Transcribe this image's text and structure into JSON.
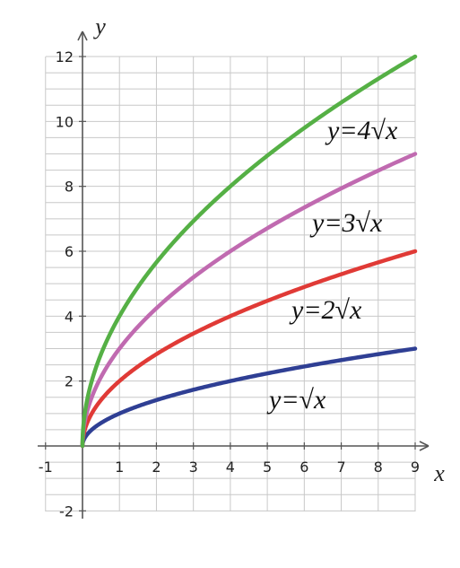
{
  "chart_data": {
    "type": "line",
    "title": "",
    "xlabel": "x",
    "ylabel": "y",
    "xlim": [
      -1,
      9
    ],
    "ylim": [
      -2,
      12
    ],
    "x_ticks": [
      "-1",
      "1",
      "2",
      "3",
      "4",
      "5",
      "6",
      "7",
      "8",
      "9"
    ],
    "y_ticks": [
      "12",
      "10",
      "8",
      "6",
      "4",
      "2",
      "-2"
    ],
    "grid": true,
    "x": [
      0,
      0.25,
      1,
      2.25,
      4,
      6.25,
      9
    ],
    "series": [
      {
        "name": "y=√x",
        "coefficient": 1,
        "color": "#2f3f94",
        "values": [
          0,
          0.5,
          1,
          1.5,
          2,
          2.5,
          3
        ]
      },
      {
        "name": "y=2√x",
        "coefficient": 2,
        "color": "#e03a36",
        "values": [
          0,
          1,
          2,
          3,
          4,
          5,
          6
        ]
      },
      {
        "name": "y=3√x",
        "coefficient": 3,
        "color": "#c06ab0",
        "values": [
          0,
          1.5,
          3,
          4.5,
          6,
          7.5,
          9
        ]
      },
      {
        "name": "y=4√x",
        "coefficient": 4,
        "color": "#55b045",
        "values": [
          0,
          2,
          4,
          6,
          8,
          10,
          12
        ]
      }
    ]
  }
}
